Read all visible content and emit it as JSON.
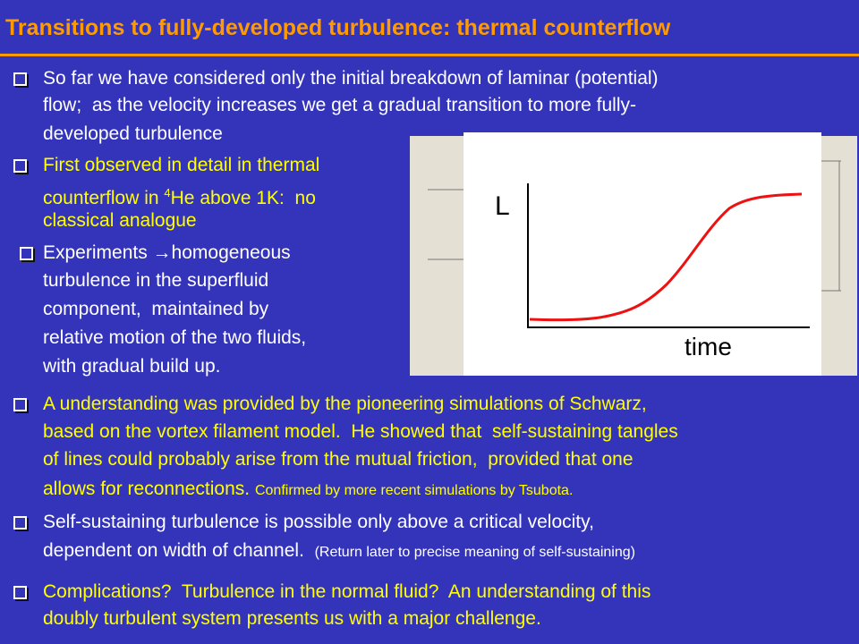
{
  "title": "Transitions to fully-developed turbulence: thermal counterflow",
  "bullets": [
    {
      "lines": [
        "So far we have considered only the initial breakdown of laminar (potential)",
        "flow;  as the velocity increases we get a gradual transition to more fully-",
        "developed turbulence"
      ]
    },
    {
      "lines": [
        "First observed in detail in thermal",
        "counterflow in ",
        "4",
        "He above 1K:  no",
        "classical analogue"
      ]
    },
    {
      "lines": [
        "Experiments →homogeneous",
        "turbulence in the superfluid",
        "component,  maintained by",
        "relative motion of the two fluids,",
        "with gradual build up."
      ]
    },
    {
      "lines": [
        "A understanding was provided by the pioneering simulations of Schwarz,",
        "based on the vortex filament model.  He showed that  self-sustaining tangles",
        "of lines could probably arise from the mutual friction,  provided that one",
        "allows for reconnections.",
        "Confirmed by more recent simulations by Tsubota."
      ]
    },
    {
      "lines": [
        "Self-sustaining turbulence is possible only above a critical velocity,",
        "dependent on width of channel.",
        "(Return later to precise meaning of self-sustaining)"
      ]
    },
    {
      "lines": [
        "Complications?  Turbulence in the normal fluid?  An understanding of this",
        "doubly turbulent system presents us with a major challenge."
      ]
    }
  ],
  "figure": {
    "y_label": "L",
    "x_label": "time"
  }
}
